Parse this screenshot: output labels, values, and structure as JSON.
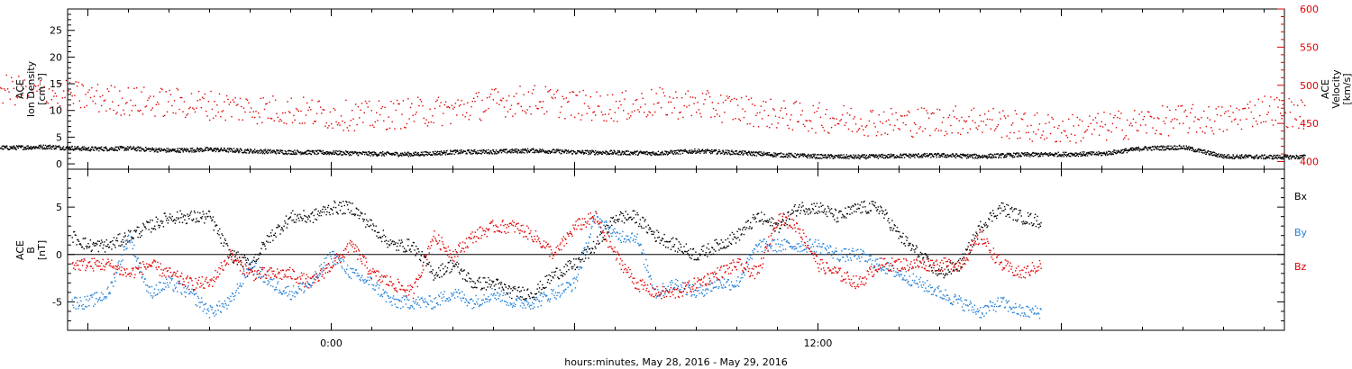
{
  "chart_data": [
    {
      "type": "scatter",
      "panel": "plasma",
      "left_ylabel_lines": [
        "ACE",
        "Ion Density",
        "[cm⁻³]"
      ],
      "right_ylabel_lines": [
        "ACE",
        "Velocity",
        "[km/s]"
      ],
      "left_ylim": [
        -1,
        29
      ],
      "right_ylim": [
        390,
        600
      ],
      "left_ticks": [
        0,
        5,
        10,
        15,
        20,
        25
      ],
      "right_ticks": [
        400,
        450,
        500,
        550,
        600
      ],
      "grid": false,
      "series": [
        {
          "axis": "left",
          "color": "#000000",
          "x": [
            -16,
            -15,
            -14,
            -13,
            -12,
            -11,
            -10,
            -9,
            -8,
            -7,
            -6,
            -5,
            -4,
            -3,
            -2,
            -1,
            0,
            1,
            2,
            3,
            4,
            5,
            6,
            7,
            8,
            9,
            10,
            11,
            12,
            13,
            14,
            15,
            16,
            17,
            18,
            19,
            20,
            21,
            22,
            23,
            24
          ],
          "values": [
            3.6,
            3.7,
            3.5,
            3.8,
            3.3,
            3.6,
            3.2,
            3.4,
            3.1,
            3.3,
            2.9,
            3.0,
            2.6,
            2.8,
            2.5,
            2.3,
            2.2,
            2.0,
            1.9,
            2.3,
            2.4,
            2.6,
            2.3,
            2.2,
            2.1,
            2.5,
            2.2,
            1.8,
            1.5,
            1.4,
            1.6,
            1.7,
            1.5,
            1.8,
            1.9,
            2.0,
            3.0,
            3.2,
            1.5,
            1.4,
            1.4
          ]
        },
        {
          "axis": "right",
          "color": "#e00000",
          "x": [
            -16,
            -15,
            -14,
            -13,
            -12,
            -11,
            -10,
            -9,
            -8,
            -7,
            -6,
            -5,
            -4,
            -3,
            -2,
            -1,
            0,
            1,
            2,
            3,
            4,
            5,
            6,
            7,
            8,
            9,
            10,
            11,
            12,
            13,
            14,
            15,
            16,
            17,
            18,
            19,
            20,
            21,
            22,
            23,
            24
          ],
          "values": [
            505,
            520,
            525,
            530,
            515,
            505,
            510,
            500,
            495,
            490,
            485,
            480,
            478,
            475,
            470,
            468,
            462,
            460,
            465,
            468,
            478,
            482,
            475,
            472,
            478,
            475,
            470,
            462,
            458,
            455,
            452,
            454,
            456,
            447,
            443,
            446,
            452,
            456,
            455,
            470,
            462
          ]
        }
      ]
    },
    {
      "type": "scatter",
      "panel": "magnetic-field",
      "left_ylabel_lines": [
        "ACE",
        "B",
        "[nT]"
      ],
      "ylim": [
        -8,
        9
      ],
      "ticks": [
        -5,
        0,
        5
      ],
      "zero_line": true,
      "grid": false,
      "legend_position": "right",
      "x_ticks": [
        {
          "x": 0,
          "label": "0:00"
        },
        {
          "x": 12,
          "label": "12:00"
        }
      ],
      "xlim": [
        -6.5,
        23.5
      ],
      "xlabel": "hours:minutes, May 28, 2016 - May 29, 2016",
      "series": [
        {
          "name": "Bx",
          "color": "#000000",
          "x": [
            -6.4,
            -6.0,
            -5.5,
            -5.0,
            -4.5,
            -4.0,
            -3.5,
            -3.0,
            -2.5,
            -2.0,
            -1.5,
            -1.0,
            -0.5,
            0.0,
            0.5,
            1.0,
            1.5,
            2.0,
            2.5,
            3.0,
            3.5,
            4.0,
            4.5,
            5.0,
            5.5,
            6.0,
            6.5,
            7.0,
            7.5,
            8.0,
            8.5,
            9.0,
            9.5,
            10.0,
            10.5,
            11.0,
            11.5,
            12.0,
            12.5,
            13.0,
            13.5,
            14.0,
            14.5,
            15.0,
            15.5,
            16.0,
            16.5,
            17.0,
            17.5
          ],
          "values": [
            2,
            1,
            1,
            2,
            3,
            4,
            4,
            4,
            0,
            -1,
            2,
            4,
            4,
            5,
            5,
            3,
            1,
            1,
            -2,
            -1,
            -3,
            -3,
            -4,
            -4,
            -2,
            -1,
            1,
            4,
            4,
            2,
            1,
            0,
            1,
            2,
            4,
            3,
            5,
            5,
            4,
            5,
            5,
            2,
            0,
            -2,
            -1,
            3,
            5,
            4,
            3.5
          ]
        },
        {
          "name": "By",
          "color": "#1e7fd6",
          "x": [
            -6.4,
            -6.0,
            -5.5,
            -5.0,
            -4.5,
            -4.0,
            -3.5,
            -3.0,
            -2.5,
            -2.0,
            -1.5,
            -1.0,
            -0.5,
            0.0,
            0.5,
            1.0,
            1.5,
            2.0,
            2.5,
            3.0,
            3.5,
            4.0,
            4.5,
            5.0,
            5.5,
            6.0,
            6.5,
            7.0,
            7.5,
            8.0,
            8.5,
            9.0,
            9.5,
            10.0,
            10.5,
            11.0,
            11.5,
            12.0,
            12.5,
            13.0,
            13.5,
            14.0,
            14.5,
            15.0,
            15.5,
            16.0,
            16.5,
            17.0,
            17.5
          ],
          "values": [
            -5,
            -5,
            -4,
            2,
            -4,
            -3,
            -4,
            -6,
            -5,
            -1,
            -3,
            -4,
            -3,
            0,
            -2,
            -3,
            -5,
            -5,
            -5,
            -4,
            -5,
            -4,
            -5,
            -5,
            -4,
            -3,
            4,
            2,
            2,
            -4,
            -3,
            -4,
            -3,
            -3,
            1,
            1,
            1,
            1,
            0,
            0,
            -1,
            -2,
            -3,
            -4,
            -5,
            -6,
            -5,
            -6,
            -6
          ]
        },
        {
          "name": "Bz",
          "color": "#e00000",
          "x": [
            -6.4,
            -6.0,
            -5.5,
            -5.0,
            -4.5,
            -4.0,
            -3.5,
            -3.0,
            -2.5,
            -2.0,
            -1.5,
            -1.0,
            -0.5,
            0.0,
            0.5,
            1.0,
            1.5,
            2.0,
            2.5,
            3.0,
            3.5,
            4.0,
            4.5,
            5.0,
            5.5,
            6.0,
            6.5,
            7.0,
            7.5,
            8.0,
            8.5,
            9.0,
            9.5,
            10.0,
            10.5,
            11.0,
            11.5,
            12.0,
            12.5,
            13.0,
            13.5,
            14.0,
            14.5,
            15.0,
            15.5,
            16.0,
            16.5,
            17.0,
            17.5
          ],
          "values": [
            -1,
            -1,
            -1,
            -2,
            -1,
            -2,
            -3,
            -3,
            0,
            -2,
            -2,
            -2,
            -3,
            -1,
            1,
            -2,
            -3,
            -4,
            2,
            0,
            2,
            3,
            3,
            2,
            0,
            3,
            4,
            0,
            -3,
            -4,
            -4,
            -3,
            -2,
            -1,
            -2,
            4,
            3,
            -1,
            -2,
            -3,
            -1,
            -1,
            -1,
            -1,
            -1,
            2,
            -1,
            -2,
            -1
          ]
        }
      ]
    }
  ]
}
